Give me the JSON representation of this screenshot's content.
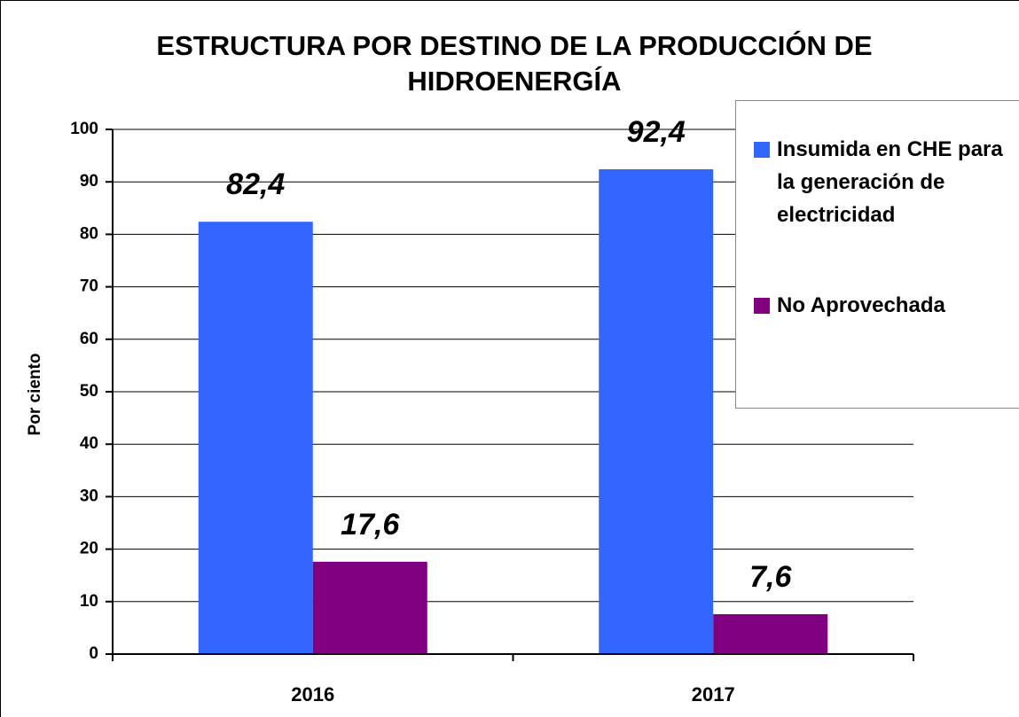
{
  "chart_data": {
    "type": "bar",
    "title": "ESTRUCTURA POR DESTINO DE LA PRODUCCIÓN DE HIDROENERGÍA",
    "ylabel": "Por ciento",
    "categories": [
      "2016",
      "2017"
    ],
    "series": [
      {
        "name": "Insumida en CHE para la generación de electricidad",
        "color": "#3366ff",
        "values": [
          82.4,
          92.4
        ],
        "value_labels": [
          "82,4",
          "92,4"
        ]
      },
      {
        "name": "No Aprovechada",
        "color": "#800080",
        "values": [
          17.6,
          7.6
        ],
        "value_labels": [
          "17,6",
          "7,6"
        ]
      }
    ],
    "ylim": [
      0,
      100
    ],
    "yticks": [
      0,
      10,
      20,
      30,
      40,
      50,
      60,
      70,
      80,
      90,
      100
    ],
    "grid": true,
    "legend": "upper right"
  }
}
